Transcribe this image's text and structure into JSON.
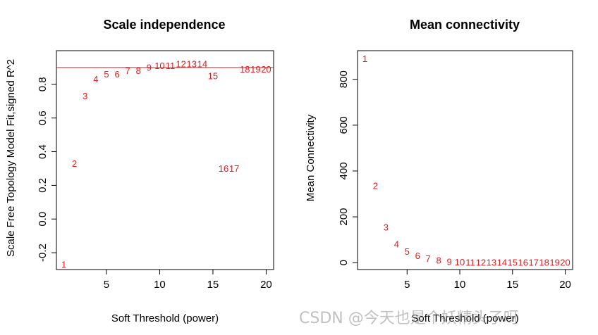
{
  "colors": {
    "points": "#e41a1c",
    "hline": "#e41a1c",
    "axis": "#000000"
  },
  "watermark": "CSDN @今天也是个妖精头子呀",
  "chart_data": [
    {
      "type": "scatter",
      "title": "Scale independence",
      "xlabel": "Soft Threshold (power)",
      "ylabel": "Scale Free Topology Model Fit,signed R^2",
      "xlim": [
        0.3,
        20.7
      ],
      "ylim": [
        -0.3,
        1.0
      ],
      "xticks": [
        5,
        10,
        15,
        20
      ],
      "yticks": [
        -0.2,
        0.0,
        0.2,
        0.4,
        0.6,
        0.8
      ],
      "ytick_labels": [
        "-0.2",
        "0.0",
        "0.2",
        "0.4",
        "0.6",
        "0.8"
      ],
      "hline": 0.9,
      "points": [
        {
          "x": 1,
          "y": -0.27,
          "label": "1"
        },
        {
          "x": 2,
          "y": 0.33,
          "label": "2"
        },
        {
          "x": 3,
          "y": 0.73,
          "label": "3"
        },
        {
          "x": 4,
          "y": 0.83,
          "label": "4"
        },
        {
          "x": 5,
          "y": 0.86,
          "label": "5"
        },
        {
          "x": 6,
          "y": 0.86,
          "label": "6"
        },
        {
          "x": 7,
          "y": 0.88,
          "label": "7"
        },
        {
          "x": 8,
          "y": 0.88,
          "label": "8"
        },
        {
          "x": 9,
          "y": 0.9,
          "label": "9"
        },
        {
          "x": 10,
          "y": 0.91,
          "label": "10"
        },
        {
          "x": 11,
          "y": 0.91,
          "label": "11"
        },
        {
          "x": 12,
          "y": 0.92,
          "label": "12"
        },
        {
          "x": 13,
          "y": 0.92,
          "label": "13"
        },
        {
          "x": 14,
          "y": 0.92,
          "label": "14"
        },
        {
          "x": 15,
          "y": 0.85,
          "label": "15"
        },
        {
          "x": 16,
          "y": 0.3,
          "label": "16"
        },
        {
          "x": 17,
          "y": 0.3,
          "label": "17"
        },
        {
          "x": 18,
          "y": 0.89,
          "label": "18"
        },
        {
          "x": 19,
          "y": 0.89,
          "label": "19"
        },
        {
          "x": 20,
          "y": 0.89,
          "label": "20"
        }
      ]
    },
    {
      "type": "scatter",
      "title": "Mean connectivity",
      "xlabel": "Soft Threshold (power)",
      "ylabel": "Mean Connectivity",
      "xlim": [
        0.3,
        20.7
      ],
      "ylim": [
        -30,
        925
      ],
      "xticks": [
        5,
        10,
        15,
        20
      ],
      "yticks": [
        0,
        200,
        400,
        600,
        800
      ],
      "ytick_labels": [
        "0",
        "200",
        "400",
        "600",
        "800"
      ],
      "points": [
        {
          "x": 1,
          "y": 890,
          "label": "1"
        },
        {
          "x": 2,
          "y": 335,
          "label": "2"
        },
        {
          "x": 3,
          "y": 155,
          "label": "3"
        },
        {
          "x": 4,
          "y": 80,
          "label": "4"
        },
        {
          "x": 5,
          "y": 48,
          "label": "5"
        },
        {
          "x": 6,
          "y": 30,
          "label": "6"
        },
        {
          "x": 7,
          "y": 18,
          "label": "7"
        },
        {
          "x": 8,
          "y": 10,
          "label": "8"
        },
        {
          "x": 9,
          "y": 4,
          "label": "9"
        },
        {
          "x": 10,
          "y": 2,
          "label": "10"
        },
        {
          "x": 11,
          "y": 1,
          "label": "11"
        },
        {
          "x": 12,
          "y": 1,
          "label": "12"
        },
        {
          "x": 13,
          "y": 0,
          "label": "13"
        },
        {
          "x": 14,
          "y": 0,
          "label": "14"
        },
        {
          "x": 15,
          "y": 0,
          "label": "15"
        },
        {
          "x": 16,
          "y": 0,
          "label": "16"
        },
        {
          "x": 17,
          "y": 0,
          "label": "17"
        },
        {
          "x": 18,
          "y": 0,
          "label": "18"
        },
        {
          "x": 19,
          "y": 0,
          "label": "19"
        },
        {
          "x": 20,
          "y": 0,
          "label": "20"
        }
      ]
    }
  ]
}
